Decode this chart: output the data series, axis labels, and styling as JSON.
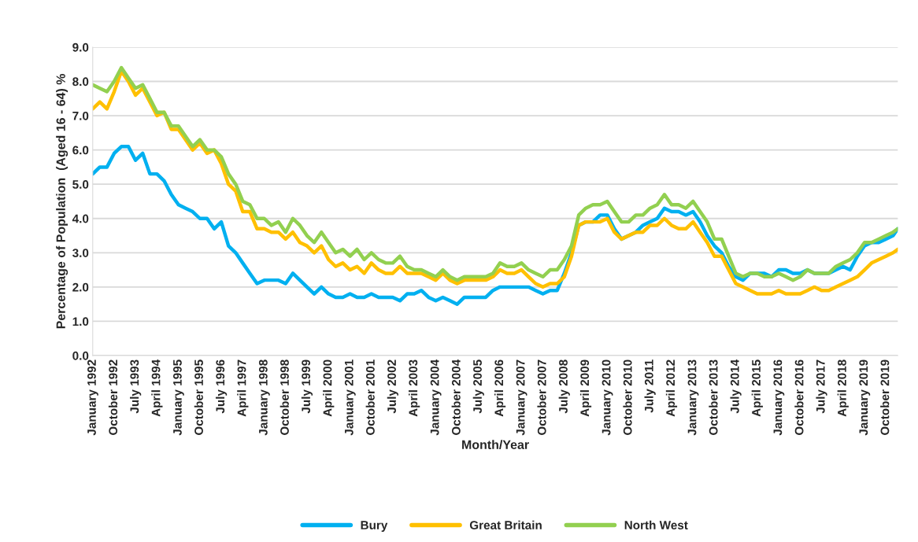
{
  "chart_data": {
    "type": "line",
    "xlabel": "Month/Year",
    "ylabel": "Percentage of Population  (Aged 16 - 64) %",
    "x": [
      "1992-01",
      "1992-04",
      "1992-07",
      "1992-10",
      "1993-01",
      "1993-04",
      "1993-07",
      "1993-10",
      "1994-01",
      "1994-04",
      "1994-07",
      "1994-10",
      "1995-01",
      "1995-04",
      "1995-07",
      "1995-10",
      "1996-01",
      "1996-04",
      "1996-07",
      "1996-10",
      "1997-01",
      "1997-04",
      "1997-07",
      "1997-10",
      "1998-01",
      "1998-04",
      "1998-07",
      "1998-10",
      "1999-01",
      "1999-04",
      "1999-07",
      "1999-10",
      "2000-01",
      "2000-04",
      "2000-07",
      "2000-10",
      "2001-01",
      "2001-04",
      "2001-07",
      "2001-10",
      "2002-01",
      "2002-04",
      "2002-07",
      "2002-10",
      "2003-01",
      "2003-04",
      "2003-07",
      "2003-10",
      "2004-01",
      "2004-04",
      "2004-07",
      "2004-10",
      "2005-01",
      "2005-04",
      "2005-07",
      "2005-10",
      "2006-01",
      "2006-04",
      "2006-07",
      "2006-10",
      "2007-01",
      "2007-04",
      "2007-07",
      "2007-10",
      "2008-01",
      "2008-04",
      "2008-07",
      "2008-10",
      "2009-01",
      "2009-04",
      "2009-07",
      "2009-10",
      "2010-01",
      "2010-04",
      "2010-07",
      "2010-10",
      "2011-01",
      "2011-04",
      "2011-07",
      "2011-10",
      "2012-01",
      "2012-04",
      "2012-07",
      "2012-10",
      "2013-01",
      "2013-04",
      "2013-07",
      "2013-10",
      "2014-01",
      "2014-04",
      "2014-07",
      "2014-10",
      "2015-01",
      "2015-04",
      "2015-07",
      "2015-10",
      "2016-01",
      "2016-04",
      "2016-07",
      "2016-10",
      "2017-01",
      "2017-04",
      "2017-07",
      "2017-10",
      "2018-01",
      "2018-04",
      "2018-07",
      "2018-10",
      "2019-01",
      "2019-04",
      "2019-07",
      "2019-10",
      "2020-01",
      "2020-03"
    ],
    "series": [
      {
        "name": "Bury",
        "color": "#00b0f0",
        "values": [
          5.3,
          5.5,
          5.5,
          5.9,
          6.1,
          6.1,
          5.7,
          5.9,
          5.3,
          5.3,
          5.1,
          4.7,
          4.4,
          4.3,
          4.2,
          4.0,
          4.0,
          3.7,
          3.9,
          3.2,
          3.0,
          2.7,
          2.4,
          2.1,
          2.2,
          2.2,
          2.2,
          2.1,
          2.4,
          2.2,
          2.0,
          1.8,
          2.0,
          1.8,
          1.7,
          1.7,
          1.8,
          1.7,
          1.7,
          1.8,
          1.7,
          1.7,
          1.7,
          1.6,
          1.8,
          1.8,
          1.9,
          1.7,
          1.6,
          1.7,
          1.6,
          1.5,
          1.7,
          1.7,
          1.7,
          1.7,
          1.9,
          2.0,
          2.0,
          2.0,
          2.0,
          2.0,
          1.9,
          1.8,
          1.9,
          1.9,
          2.4,
          3.0,
          3.8,
          3.9,
          3.9,
          4.1,
          4.1,
          3.7,
          3.4,
          3.5,
          3.6,
          3.8,
          3.9,
          4.0,
          4.3,
          4.2,
          4.2,
          4.1,
          4.2,
          3.9,
          3.5,
          3.2,
          3.0,
          2.6,
          2.3,
          2.2,
          2.4,
          2.4,
          2.4,
          2.3,
          2.5,
          2.5,
          2.4,
          2.4,
          2.5,
          2.4,
          2.4,
          2.4,
          2.5,
          2.6,
          2.5,
          2.9,
          3.2,
          3.3,
          3.3,
          3.4,
          3.5,
          3.7
        ]
      },
      {
        "name": "Great Britain",
        "color": "#ffc000",
        "values": [
          7.2,
          7.4,
          7.2,
          7.7,
          8.3,
          8.0,
          7.6,
          7.8,
          7.4,
          7.0,
          7.1,
          6.6,
          6.6,
          6.3,
          6.0,
          6.2,
          5.9,
          6.0,
          5.6,
          5.0,
          4.8,
          4.2,
          4.2,
          3.7,
          3.7,
          3.6,
          3.6,
          3.4,
          3.6,
          3.3,
          3.2,
          3.0,
          3.2,
          2.8,
          2.6,
          2.7,
          2.5,
          2.6,
          2.4,
          2.7,
          2.5,
          2.4,
          2.4,
          2.6,
          2.4,
          2.4,
          2.4,
          2.3,
          2.2,
          2.4,
          2.2,
          2.1,
          2.2,
          2.2,
          2.2,
          2.2,
          2.3,
          2.5,
          2.4,
          2.4,
          2.5,
          2.3,
          2.1,
          2.0,
          2.1,
          2.1,
          2.3,
          2.9,
          3.8,
          3.9,
          3.9,
          3.9,
          4.0,
          3.6,
          3.4,
          3.5,
          3.6,
          3.6,
          3.8,
          3.8,
          4.0,
          3.8,
          3.7,
          3.7,
          3.9,
          3.6,
          3.3,
          2.9,
          2.9,
          2.5,
          2.1,
          2.0,
          1.9,
          1.8,
          1.8,
          1.8,
          1.9,
          1.8,
          1.8,
          1.8,
          1.9,
          2.0,
          1.9,
          1.9,
          2.0,
          2.1,
          2.2,
          2.3,
          2.5,
          2.7,
          2.8,
          2.9,
          3.0,
          3.1
        ]
      },
      {
        "name": "North West",
        "color": "#92d050",
        "values": [
          7.9,
          7.8,
          7.7,
          8.0,
          8.4,
          8.1,
          7.8,
          7.9,
          7.5,
          7.1,
          7.1,
          6.7,
          6.7,
          6.4,
          6.1,
          6.3,
          6.0,
          6.0,
          5.8,
          5.3,
          5.0,
          4.5,
          4.4,
          4.0,
          4.0,
          3.8,
          3.9,
          3.6,
          4.0,
          3.8,
          3.5,
          3.3,
          3.6,
          3.3,
          3.0,
          3.1,
          2.9,
          3.1,
          2.8,
          3.0,
          2.8,
          2.7,
          2.7,
          2.9,
          2.6,
          2.5,
          2.5,
          2.4,
          2.3,
          2.5,
          2.3,
          2.2,
          2.3,
          2.3,
          2.3,
          2.3,
          2.4,
          2.7,
          2.6,
          2.6,
          2.7,
          2.5,
          2.4,
          2.3,
          2.5,
          2.5,
          2.8,
          3.2,
          4.1,
          4.3,
          4.4,
          4.4,
          4.5,
          4.2,
          3.9,
          3.9,
          4.1,
          4.1,
          4.3,
          4.4,
          4.7,
          4.4,
          4.4,
          4.3,
          4.5,
          4.2,
          3.9,
          3.4,
          3.4,
          2.9,
          2.4,
          2.3,
          2.4,
          2.4,
          2.3,
          2.3,
          2.4,
          2.3,
          2.2,
          2.3,
          2.5,
          2.4,
          2.4,
          2.4,
          2.6,
          2.7,
          2.8,
          3.0,
          3.3,
          3.3,
          3.4,
          3.5,
          3.6,
          3.7
        ]
      }
    ],
    "xlim": [
      "1992-01",
      "2020-03"
    ],
    "xticks": [
      {
        "value": "1992-01",
        "label": "January 1992"
      },
      {
        "value": "1992-10",
        "label": "October 1992"
      },
      {
        "value": "1993-07",
        "label": "July 1993"
      },
      {
        "value": "1994-04",
        "label": "April 1994"
      },
      {
        "value": "1995-01",
        "label": "January 1995"
      },
      {
        "value": "1995-10",
        "label": "October 1995"
      },
      {
        "value": "1996-07",
        "label": "July 1996"
      },
      {
        "value": "1997-04",
        "label": "April 1997"
      },
      {
        "value": "1998-01",
        "label": "January 1998"
      },
      {
        "value": "1998-10",
        "label": "October 1998"
      },
      {
        "value": "1999-07",
        "label": "July 1999"
      },
      {
        "value": "2000-04",
        "label": "April 2000"
      },
      {
        "value": "2001-01",
        "label": "January 2001"
      },
      {
        "value": "2001-10",
        "label": "October 2001"
      },
      {
        "value": "2002-07",
        "label": "July 2002"
      },
      {
        "value": "2003-04",
        "label": "April 2003"
      },
      {
        "value": "2004-01",
        "label": "January 2004"
      },
      {
        "value": "2004-10",
        "label": "October 2004"
      },
      {
        "value": "2005-07",
        "label": "July 2005"
      },
      {
        "value": "2006-04",
        "label": "April 2006"
      },
      {
        "value": "2007-01",
        "label": "January 2007"
      },
      {
        "value": "2007-10",
        "label": "October 2007"
      },
      {
        "value": "2008-07",
        "label": "July 2008"
      },
      {
        "value": "2009-04",
        "label": "April 2009"
      },
      {
        "value": "2010-01",
        "label": "January 2010"
      },
      {
        "value": "2010-10",
        "label": "October 2010"
      },
      {
        "value": "2011-07",
        "label": "July 2011"
      },
      {
        "value": "2012-04",
        "label": "April 2012"
      },
      {
        "value": "2013-01",
        "label": "January 2013"
      },
      {
        "value": "2013-10",
        "label": "October 2013"
      },
      {
        "value": "2014-07",
        "label": "July 2014"
      },
      {
        "value": "2015-04",
        "label": "April 2015"
      },
      {
        "value": "2016-01",
        "label": "January 2016"
      },
      {
        "value": "2016-10",
        "label": "October 2016"
      },
      {
        "value": "2017-07",
        "label": "July 2017"
      },
      {
        "value": "2018-04",
        "label": "April 2018"
      },
      {
        "value": "2019-01",
        "label": "January 2019"
      },
      {
        "value": "2019-10",
        "label": "October 2019"
      }
    ],
    "ylim": [
      0,
      9
    ],
    "yticks": [
      {
        "value": 0,
        "label": "0.0"
      },
      {
        "value": 1,
        "label": "1.0"
      },
      {
        "value": 2,
        "label": "2.0"
      },
      {
        "value": 3,
        "label": "3.0"
      },
      {
        "value": 4,
        "label": "4.0"
      },
      {
        "value": 5,
        "label": "5.0"
      },
      {
        "value": 6,
        "label": "6.0"
      },
      {
        "value": 7,
        "label": "7.0"
      },
      {
        "value": 8,
        "label": "8.0"
      },
      {
        "value": 9,
        "label": "9.0"
      }
    ],
    "grid": "y",
    "legend": "bottom",
    "line_style": "solid",
    "marker": "none"
  }
}
